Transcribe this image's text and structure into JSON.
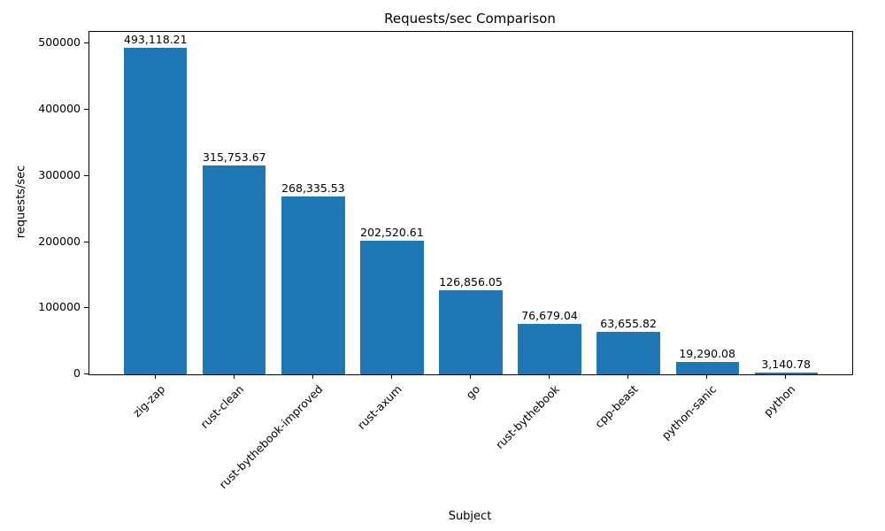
{
  "chart_data": {
    "type": "bar",
    "title": "Requests/sec Comparison",
    "xlabel": "Subject",
    "ylabel": "requests/sec",
    "categories": [
      "zig-zap",
      "rust-clean",
      "rust-bythebook-improved",
      "rust-axum",
      "go",
      "rust-bythebook",
      "cpp-beast",
      "python-sanic",
      "python"
    ],
    "values": [
      493118.21,
      315753.67,
      268335.53,
      202520.61,
      126856.05,
      76679.04,
      63655.82,
      19290.08,
      3140.78
    ],
    "value_labels": [
      "493,118.21",
      "315,753.67",
      "268,335.53",
      "202,520.61",
      "126,856.05",
      "76,679.04",
      "63,655.82",
      "19,290.08",
      "3,140.78"
    ],
    "bar_color": "#1f77b4",
    "ylim": [
      0,
      517774
    ],
    "yticks": [
      0,
      100000,
      200000,
      300000,
      400000,
      500000
    ],
    "ytick_labels": [
      "0",
      "100000",
      "200000",
      "300000",
      "400000",
      "500000"
    ],
    "grid": false,
    "legend": "none"
  }
}
